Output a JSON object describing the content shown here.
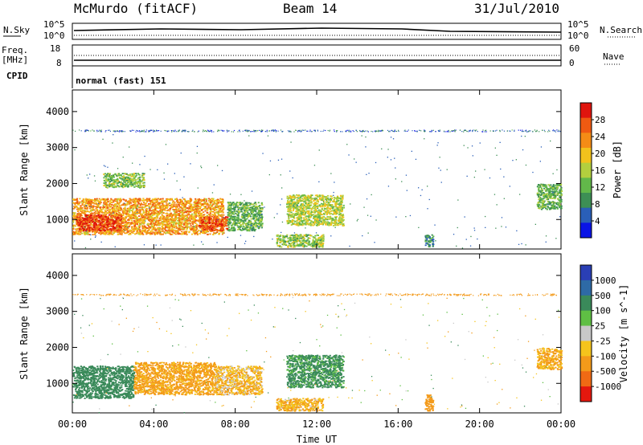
{
  "header": {
    "station": "McMurdo (fitACF)",
    "beam": "Beam 14",
    "date": "31/Jul/2010"
  },
  "top_panel": {
    "left_label": "N.Sky",
    "right_label": "N.Search",
    "left_ticks": [
      "10^5",
      "10^0"
    ],
    "right_ticks": [
      "10^5",
      "10^0"
    ]
  },
  "freq_panel": {
    "left_label_line1": "Freq.",
    "left_label_line2": "[MHz]",
    "right_label": "Nave",
    "left_ticks": [
      "18",
      "8"
    ],
    "right_ticks": [
      "60",
      "0"
    ]
  },
  "cpid": {
    "label": "CPID",
    "value": "normal (fast) 151"
  },
  "chart_data": [
    {
      "type": "heatmap",
      "title": "",
      "xlabel": "",
      "ylabel": "Slant Range [km]",
      "xlim": [
        0,
        24
      ],
      "ylim": [
        180,
        4600
      ],
      "x_tick_labels": [
        "00:00",
        "04:00",
        "08:00",
        "12:00",
        "16:00",
        "20:00",
        "00:00"
      ],
      "y_ticks": [
        1000,
        2000,
        3000,
        4000
      ],
      "colorbar": {
        "label": "Power [dB]",
        "ticks": [
          4,
          8,
          12,
          16,
          20,
          24,
          28
        ],
        "range": [
          0,
          32
        ],
        "colors": [
          "#0a14e6",
          "#2a5fb8",
          "#3d8f55",
          "#62b84a",
          "#b3cf3e",
          "#f2c21c",
          "#f48c16",
          "#ef5a12",
          "#e0150e"
        ]
      },
      "regions": [
        {
          "t": [
            0.0,
            7.4
          ],
          "r": [
            600,
            1600
          ],
          "value": 22
        },
        {
          "t": [
            0.2,
            2.4
          ],
          "r": [
            700,
            1150
          ],
          "value": 28
        },
        {
          "t": [
            6.2,
            7.6
          ],
          "r": [
            700,
            1100
          ],
          "value": 27
        },
        {
          "t": [
            7.6,
            9.3
          ],
          "r": [
            700,
            1500
          ],
          "value": 12
        },
        {
          "t": [
            10.5,
            13.3
          ],
          "r": [
            850,
            1700
          ],
          "value": 16
        },
        {
          "t": [
            10.0,
            12.3
          ],
          "r": [
            250,
            600
          ],
          "value": 14
        },
        {
          "t": [
            1.5,
            3.5
          ],
          "r": [
            1900,
            2300
          ],
          "value": 14
        },
        {
          "t": [
            22.8,
            24.0
          ],
          "r": [
            1300,
            2000
          ],
          "value": 12
        },
        {
          "t": [
            17.3,
            17.7
          ],
          "r": [
            250,
            600
          ],
          "value": 8
        },
        {
          "t": [
            0.0,
            24.0
          ],
          "r": [
            3450,
            3500
          ],
          "value": 6
        }
      ]
    },
    {
      "type": "heatmap",
      "title": "",
      "xlabel": "Time UT",
      "ylabel": "Slant Range [km]",
      "xlim": [
        0,
        24
      ],
      "ylim": [
        180,
        4600
      ],
      "x_tick_labels": [
        "00:00",
        "04:00",
        "08:00",
        "12:00",
        "16:00",
        "20:00",
        "00:00"
      ],
      "y_ticks": [
        1000,
        2000,
        3000,
        4000
      ],
      "colorbar": {
        "label": "Velocity [m s^-1]",
        "ticks": [
          "1000",
          "500",
          "100",
          "25",
          "-25",
          "-100",
          "-500",
          "-1000"
        ],
        "colors": [
          "#2a3fb5",
          "#2e6aa6",
          "#3a8a5a",
          "#5fbf44",
          "#c8c8c8",
          "#f5c41c",
          "#f39a1a",
          "#f06a14",
          "#e4180e"
        ]
      },
      "regions": [
        {
          "t": [
            0.0,
            3.0
          ],
          "r": [
            600,
            1500
          ],
          "value": 200
        },
        {
          "t": [
            3.0,
            7.0
          ],
          "r": [
            700,
            1600
          ],
          "value": -150
        },
        {
          "t": [
            7.0,
            9.3
          ],
          "r": [
            700,
            1500
          ],
          "value": -80
        },
        {
          "t": [
            10.5,
            13.3
          ],
          "r": [
            900,
            1800
          ],
          "value": 150
        },
        {
          "t": [
            10.0,
            12.3
          ],
          "r": [
            250,
            600
          ],
          "value": -100
        },
        {
          "t": [
            22.8,
            24.0
          ],
          "r": [
            1400,
            2000
          ],
          "value": -120
        },
        {
          "t": [
            17.3,
            17.7
          ],
          "r": [
            250,
            700
          ],
          "value": -400
        },
        {
          "t": [
            0.0,
            24.0
          ],
          "r": [
            3450,
            3500
          ],
          "value": -300
        }
      ]
    }
  ]
}
